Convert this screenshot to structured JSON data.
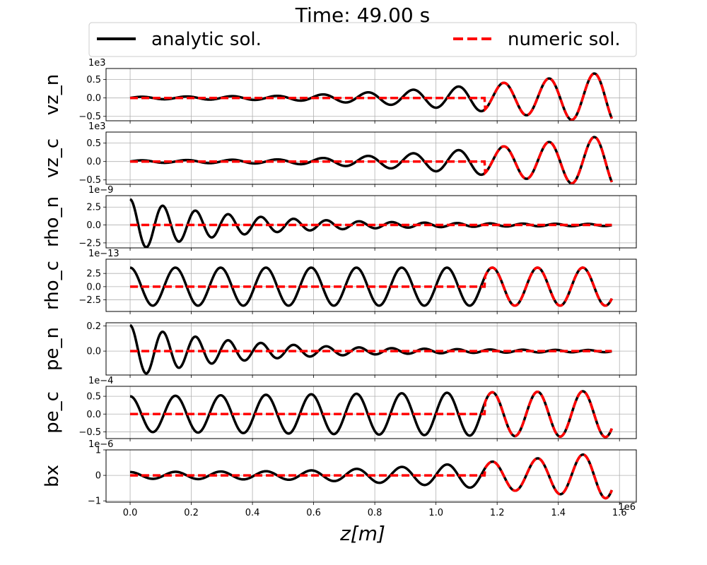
{
  "title": "Time: 49.00 s",
  "legend": {
    "placement": "top",
    "entries": [
      {
        "label": "analytic sol.",
        "color": "#000000",
        "style": "solid"
      },
      {
        "label": "numeric sol.",
        "color": "#ff0000",
        "style": "dashed"
      }
    ]
  },
  "xlabel": "z[m]",
  "x_offset_label": "1e6",
  "chart_data": [
    {
      "type": "line",
      "ylabel": "vz_n",
      "offset_label": "1e3",
      "xlim": [
        -0.0787,
        1.655
      ],
      "ylim": [
        -0.62,
        0.8
      ],
      "yticks": [
        -0.5,
        0.0,
        0.5
      ],
      "ytick_labels": [
        "−0.5",
        "0.0",
        "0.5"
      ],
      "analytic": {
        "kind": "growing_sine",
        "amp0": 0.0,
        "amp1": 0.72,
        "period": 0.148,
        "phase": 0.0,
        "x0": 0.0,
        "x1": 1.575
      },
      "numeric": {
        "front_x": 1.16,
        "amp": 0.72,
        "period": 0.148
      }
    },
    {
      "type": "line",
      "ylabel": "vz_c",
      "offset_label": "1e3",
      "xlim": [
        -0.0787,
        1.655
      ],
      "ylim": [
        -0.62,
        0.8
      ],
      "yticks": [
        -0.5,
        0.0,
        0.5
      ],
      "ytick_labels": [
        "−0.5",
        "0.0",
        "0.5"
      ],
      "analytic": {
        "kind": "growing_sine",
        "amp0": 0.0,
        "amp1": 0.72,
        "period": 0.148,
        "phase": 0.0,
        "x0": 0.0,
        "x1": 1.575
      },
      "numeric": {
        "front_x": 1.16,
        "amp": 0.72,
        "period": 0.148
      }
    },
    {
      "type": "line",
      "ylabel": "rho_n",
      "offset_label": "1e−9",
      "xlim": [
        -0.0787,
        1.655
      ],
      "ylim": [
        -3.2,
        4.1
      ],
      "yticks": [
        -2.5,
        0.0,
        2.5
      ],
      "ytick_labels": [
        "−2.5",
        "0.0",
        "2.5"
      ],
      "analytic": {
        "kind": "decaying_cos",
        "amp": 3.5,
        "decay": 0.35,
        "period": 0.107,
        "x0": 0.0,
        "x1": 1.575
      },
      "numeric": {
        "front_x": null
      }
    },
    {
      "type": "line",
      "ylabel": "rho_c",
      "offset_label": "1e−13",
      "xlim": [
        -0.0787,
        1.655
      ],
      "ylim": [
        -4.7,
        5.2
      ],
      "yticks": [
        -2.5,
        0.0,
        2.5
      ],
      "ytick_labels": [
        "−2.5",
        "0.0",
        "2.5"
      ],
      "analytic": {
        "kind": "cos",
        "amp": 3.6,
        "period": 0.148,
        "x0": 0.0,
        "x1": 1.575
      },
      "numeric": {
        "front_x": 1.16,
        "amp": 3.6,
        "period": 0.148
      }
    },
    {
      "type": "line",
      "ylabel": "pe_n",
      "offset_label": "",
      "xlim": [
        -0.0787,
        1.655
      ],
      "ylim": [
        -0.19,
        0.225
      ],
      "yticks": [
        0.0,
        0.2
      ],
      "ytick_labels": [
        "0.0",
        "0.2"
      ],
      "analytic": {
        "kind": "decaying_cos",
        "amp": 0.2,
        "decay": 0.35,
        "period": 0.107,
        "x0": 0.0,
        "x1": 1.575
      },
      "numeric": {
        "front_x": null
      }
    },
    {
      "type": "line",
      "ylabel": "pe_c",
      "offset_label": "1e−4",
      "xlim": [
        -0.0787,
        1.655
      ],
      "ylim": [
        -0.69,
        0.78
      ],
      "yticks": [
        -0.5,
        0.0,
        0.5
      ],
      "ytick_labels": [
        "−0.5",
        "0.0",
        "0.5"
      ],
      "analytic": {
        "kind": "cos",
        "amp": 0.5,
        "amp_end": 0.65,
        "period": 0.148,
        "x0": 0.0,
        "x1": 1.575
      },
      "numeric": {
        "front_x": 1.16,
        "amp": 0.65,
        "period": 0.148
      }
    },
    {
      "type": "line",
      "ylabel": "bx",
      "offset_label": "1e−6",
      "xlim": [
        -0.0787,
        1.655
      ],
      "ylim": [
        -1.05,
        1.0
      ],
      "yticks": [
        -1,
        0,
        1
      ],
      "ytick_labels": [
        "−1",
        "0",
        "1"
      ],
      "analytic": {
        "kind": "growing_sine",
        "amp0": 0.1,
        "amp1": 0.92,
        "period": 0.148,
        "phase": 1.5708,
        "x0": 0.0,
        "x1": 1.575
      },
      "numeric": {
        "front_x": 1.16,
        "amp": 0.92,
        "period": 0.148
      }
    }
  ],
  "xticks": [
    0.0,
    0.2,
    0.4,
    0.6,
    0.8,
    1.0,
    1.2,
    1.4,
    1.6
  ],
  "xtick_labels": [
    "0.0",
    "0.2",
    "0.4",
    "0.6",
    "0.8",
    "1.0",
    "1.2",
    "1.4",
    "1.6"
  ],
  "grid": true
}
